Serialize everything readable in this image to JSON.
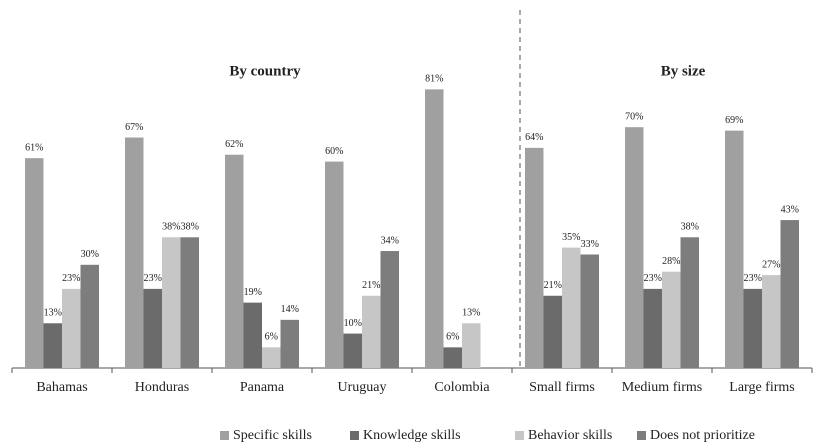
{
  "chart_data": {
    "type": "bar",
    "categories": [
      "Bahamas",
      "Honduras",
      "Panama",
      "Uruguay",
      "Colombia",
      "Small firms",
      "Medium firms",
      "Large firms"
    ],
    "series": [
      {
        "name": "Specific skills",
        "color": "#a0a0a0",
        "values": [
          61,
          67,
          62,
          60,
          81,
          64,
          70,
          69
        ],
        "value_labels": [
          "61%",
          "67%",
          "62%",
          "60%",
          "81%",
          "64%",
          "70%",
          "69%"
        ]
      },
      {
        "name": "Knowledge skills",
        "color": "#6b6b6b",
        "values": [
          13,
          23,
          19,
          10,
          6,
          21,
          23,
          23
        ],
        "value_labels": [
          "13%",
          "23%",
          "19%",
          "10%",
          "6%",
          "21%",
          "23%",
          "23%"
        ]
      },
      {
        "name": "Behavior skills",
        "color": "#c6c6c6",
        "values": [
          23,
          38,
          6,
          21,
          13,
          35,
          28,
          27
        ],
        "value_labels": [
          "23%",
          "38%",
          "6%",
          "21%",
          "13%",
          "35%",
          "28%",
          "27%"
        ]
      },
      {
        "name": "Does not prioritize",
        "color": "#7d7d7d",
        "values": [
          30,
          38,
          14,
          34,
          null,
          33,
          38,
          43
        ],
        "value_labels": [
          "30%",
          "38%",
          "14%",
          "34%",
          null,
          "33%",
          "38%",
          "43%"
        ]
      }
    ],
    "annotations": [
      "By country",
      "By size"
    ],
    "ylim": [
      0,
      100
    ],
    "grid": false,
    "legend": "bottom"
  }
}
